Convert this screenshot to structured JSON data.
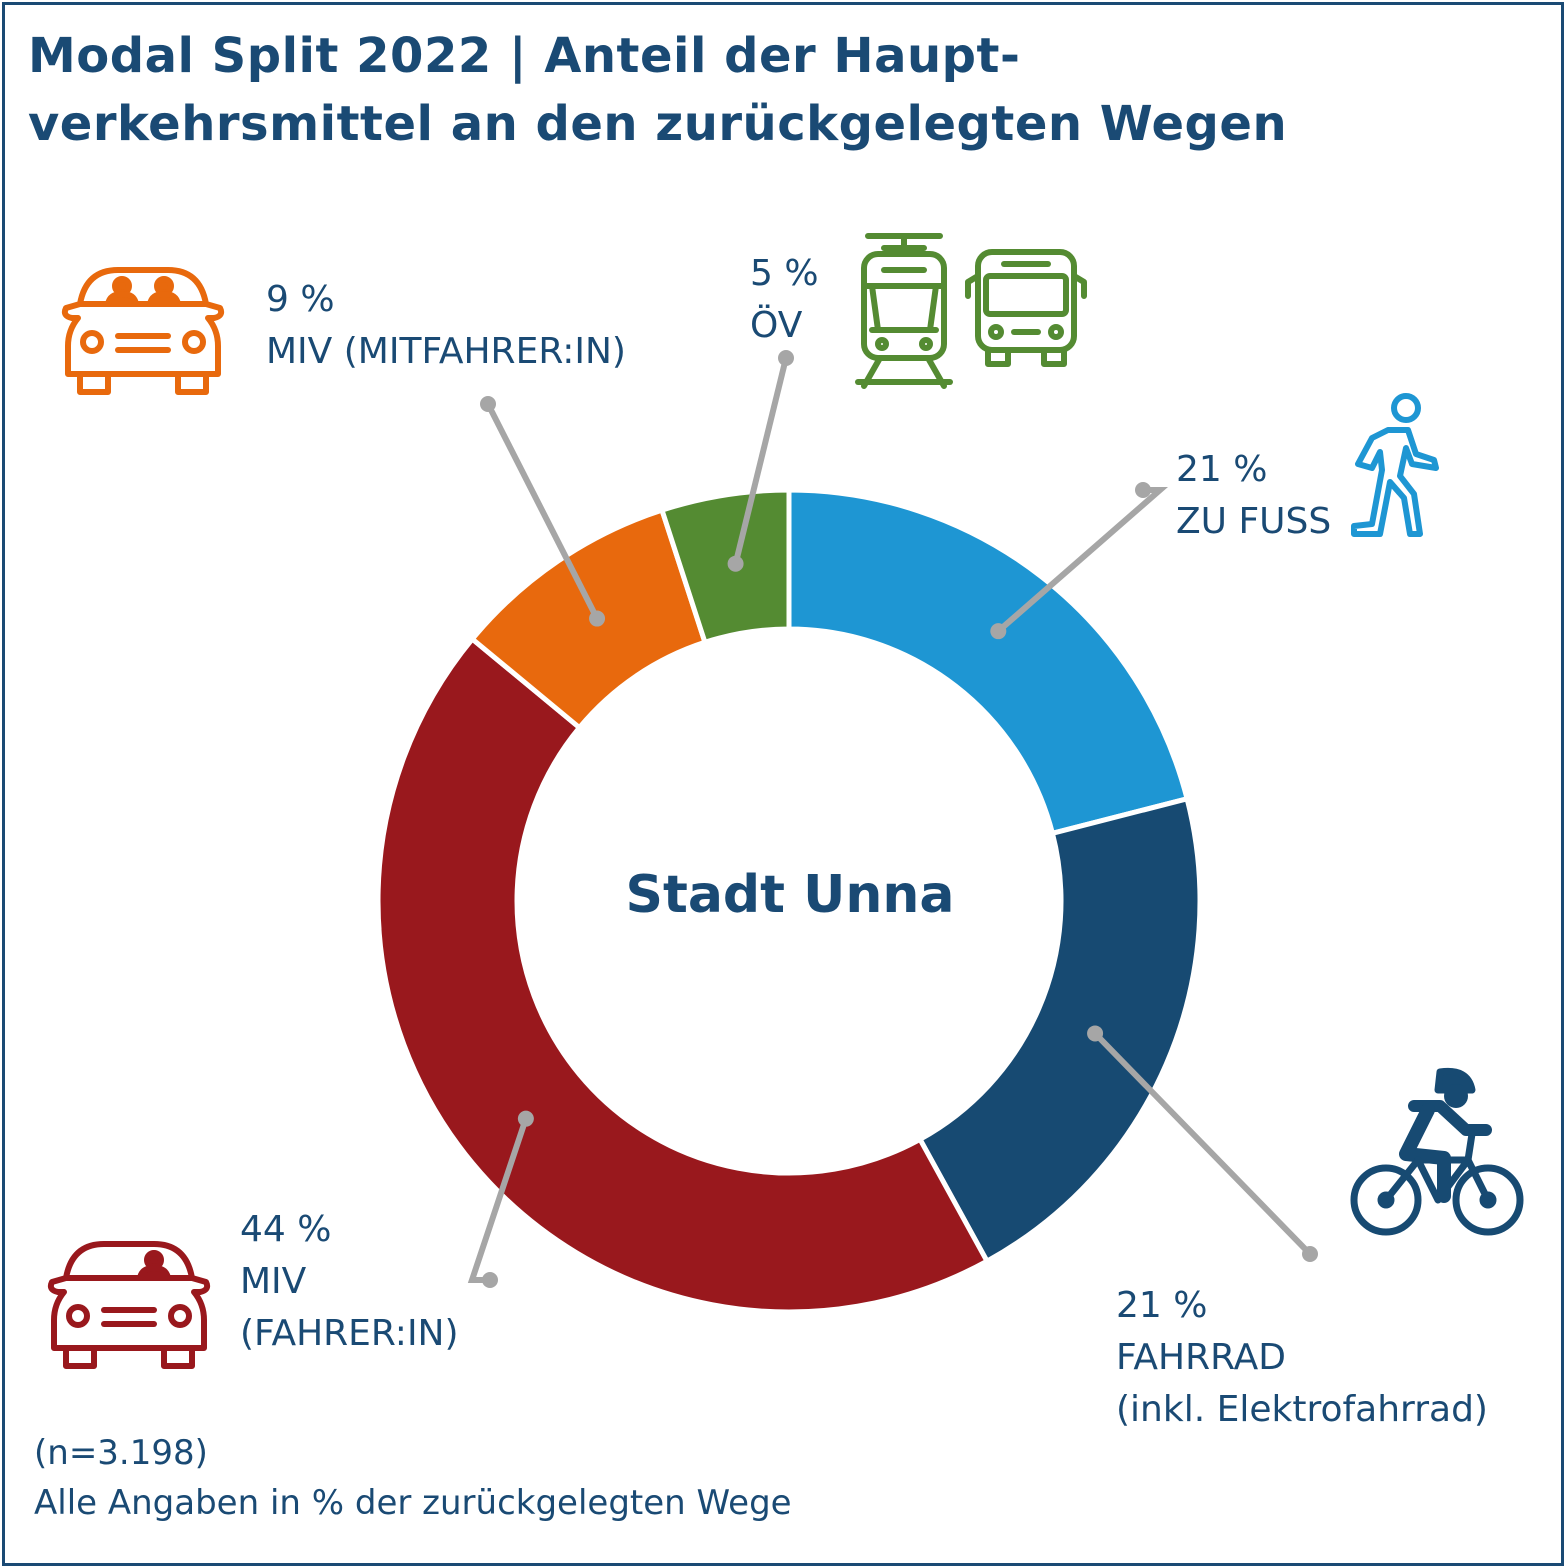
{
  "title_line1": "Modal Split 2022 | Anteil der Haupt-",
  "title_line2": "verkehrsmittel an den zurückgelegten Wegen",
  "center_label": "Stadt Unna",
  "note_line1": "(n=3.198)",
  "note_line2": "Alle Angaben in % der zurückgelegten Wege",
  "chart_data": {
    "type": "pie",
    "variant": "donut",
    "unit": "%",
    "slices": [
      {
        "pct": "21 %",
        "value": 21,
        "label": "ZU FUSS",
        "sublabel": "",
        "color": "#1e96d3",
        "icon": "pedestrian-icon"
      },
      {
        "pct": "21 %",
        "value": 21,
        "label": "FAHRRAD",
        "sublabel": "(inkl. Elektrofahrrad)",
        "color": "#174a72",
        "icon": "cyclist-icon"
      },
      {
        "pct": "44 %",
        "value": 44,
        "label": "MIV",
        "sublabel": "(FAHRER:IN)",
        "color": "#99181d",
        "icon": "car-driver-icon"
      },
      {
        "pct": "9 %",
        "value": 9,
        "label": "MIV (MITFAHRER:IN)",
        "sublabel": "",
        "color": "#e8690d",
        "icon": "car-passengers-icon"
      },
      {
        "pct": "5 %",
        "value": 5,
        "label": "ÖV",
        "sublabel": "",
        "color": "#548b32",
        "icon": "tram-bus-icon"
      }
    ],
    "leader_line_color": "#a6a6a6"
  }
}
